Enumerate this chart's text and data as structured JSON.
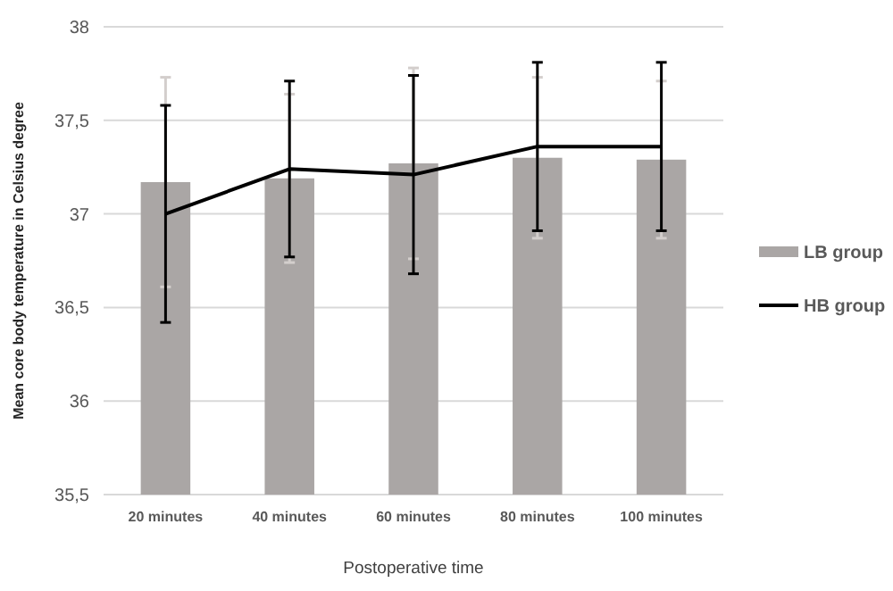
{
  "chart_data": {
    "type": "bar",
    "xlabel": "Postoperative time",
    "ylabel": "Mean core body temperature in Celsius degree",
    "categories": [
      "20 minutes",
      "40 minutes",
      "60 minutes",
      "80 minutes",
      "100 minutes"
    ],
    "series": [
      {
        "name": "LB group",
        "color": "#aaa6a5",
        "values": [
          37.17,
          37.19,
          37.27,
          37.3,
          37.29
        ],
        "errors": [
          0.56,
          0.45,
          0.51,
          0.43,
          0.42
        ]
      },
      {
        "name": "HB group",
        "type": "line",
        "color": "#000000",
        "values": [
          37.0,
          37.24,
          37.21,
          37.36,
          37.36
        ],
        "errors": [
          0.58,
          0.47,
          0.53,
          0.45,
          0.45
        ]
      }
    ],
    "ylim": [
      35.5,
      38
    ],
    "yticks": [
      {
        "value": 35.5,
        "label": "35,5"
      },
      36,
      {
        "value": 36.5,
        "label": "36,5"
      },
      37,
      {
        "value": 37.5,
        "label": "37,5"
      },
      38
    ],
    "grid": "y",
    "legend": "right",
    "marker": "none",
    "line_style": "solid"
  }
}
